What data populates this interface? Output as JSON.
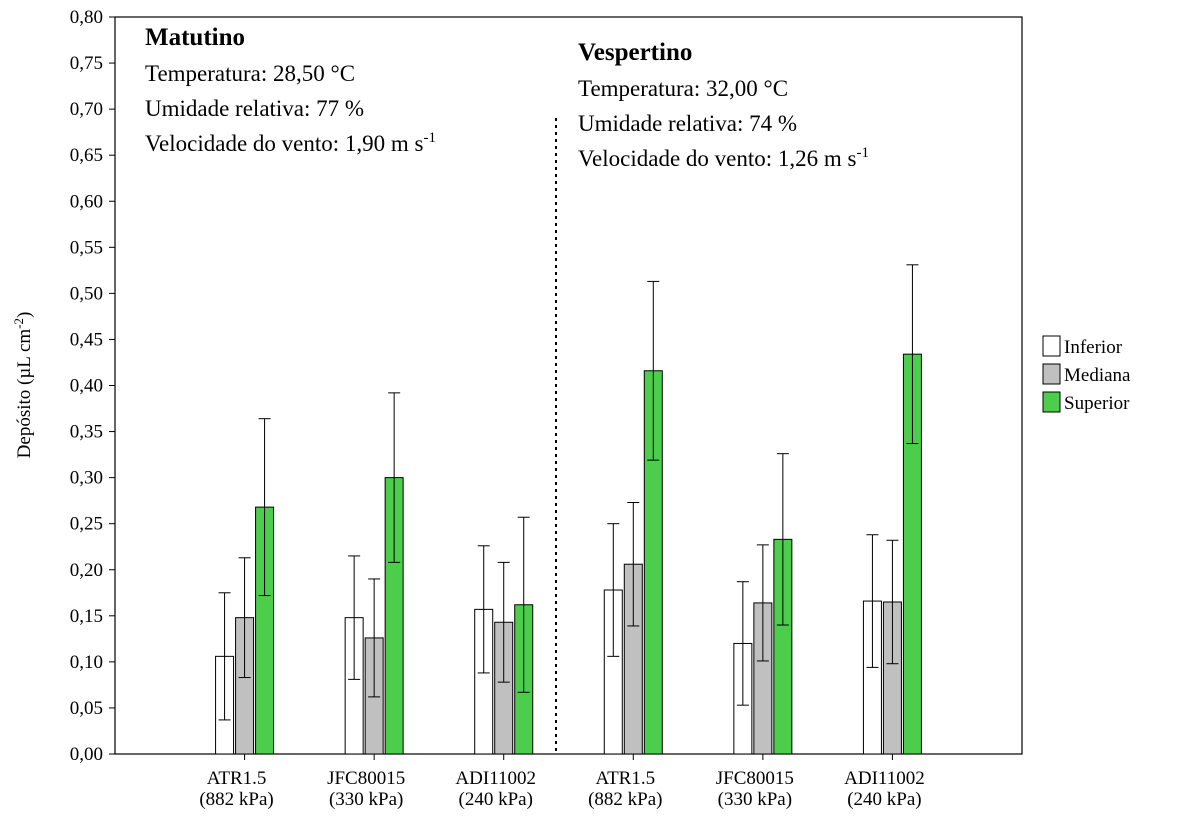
{
  "chart_data": {
    "type": "bar",
    "y_label": {
      "text": "Depósito (µL cm",
      "sup": "-2",
      "after": ")"
    },
    "categories": [
      "ATR1.5",
      "JFC80015",
      "ADI11002",
      "ATR1.5",
      "JFC80015",
      "ADI11002"
    ],
    "category_notes": [
      "(882 kPa)",
      "(330 kPa)",
      "(240 kPa)",
      "(882 kPa)",
      "(330 kPa)",
      "(240 kPa)"
    ],
    "series": [
      {
        "name": "Inferior",
        "color": "#ffffff",
        "values": [
          0.106,
          0.148,
          0.157,
          0.178,
          0.12,
          0.166
        ],
        "errors": [
          0.069,
          0.067,
          0.069,
          0.072,
          0.067,
          0.072
        ]
      },
      {
        "name": "Mediana",
        "color": "#c0c0c0",
        "values": [
          0.148,
          0.126,
          0.143,
          0.206,
          0.164,
          0.165
        ],
        "errors": [
          0.065,
          0.064,
          0.065,
          0.067,
          0.063,
          0.067
        ]
      },
      {
        "name": "Superior",
        "color": "#4ccd4c",
        "values": [
          0.268,
          0.3,
          0.162,
          0.416,
          0.233,
          0.434
        ],
        "errors": [
          0.096,
          0.092,
          0.095,
          0.097,
          0.093,
          0.097
        ]
      }
    ],
    "ylim": [
      0,
      0.8
    ],
    "yticks": [
      {
        "value": 0,
        "label": "0,00"
      },
      {
        "value": 0.05,
        "label": "0,05"
      },
      {
        "value": 0.1,
        "label": "0,10"
      },
      {
        "value": 0.15,
        "label": "0,15"
      },
      {
        "value": 0.2,
        "label": "0,20"
      },
      {
        "value": 0.25,
        "label": "0,25"
      },
      {
        "value": 0.3,
        "label": "0,30"
      },
      {
        "value": 0.35,
        "label": "0,35"
      },
      {
        "value": 0.4,
        "label": "0,40"
      },
      {
        "value": 0.45,
        "label": "0,45"
      },
      {
        "value": 0.5,
        "label": "0,50"
      },
      {
        "value": 0.55,
        "label": "0,55"
      },
      {
        "value": 0.6,
        "label": "0,60"
      },
      {
        "value": 0.65,
        "label": "0,65"
      },
      {
        "value": 0.7,
        "label": "0,70"
      },
      {
        "value": 0.75,
        "label": "0,75"
      },
      {
        "value": 0.8,
        "label": "0,80"
      }
    ],
    "annotations": [
      {
        "title": "Matutino",
        "lines": [
          {
            "text": "Temperatura: 28,50 °C"
          },
          {
            "text": "Umidade relativa: 77 %"
          },
          {
            "text": "Velocidade do vento: 1,90 m s",
            "sup": "-1"
          }
        ]
      },
      {
        "title": "Vespertino",
        "lines": [
          {
            "text": "Temperatura: 32,00 °C"
          },
          {
            "text": "Umidade relativa: 74 %"
          },
          {
            "text": "Velocidade do vento: 1,26 m s",
            "sup": "-1"
          }
        ]
      }
    ],
    "legend": "right"
  }
}
